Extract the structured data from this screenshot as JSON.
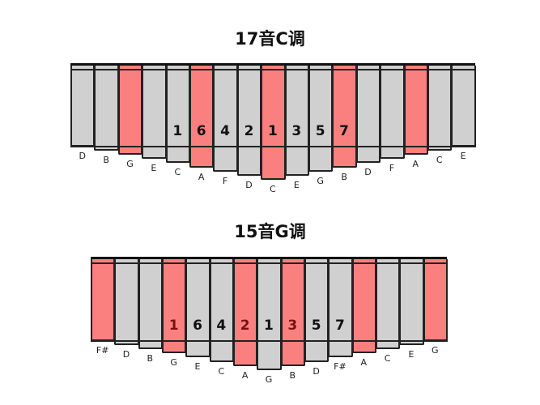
{
  "colors": {
    "red": "#fa8080",
    "gray": "#d0d0d0"
  },
  "diagrams": [
    {
      "title": "17音C调",
      "keys": [
        {
          "note": "D",
          "red": false,
          "length": 0
        },
        {
          "note": "B",
          "red": false,
          "length": 1
        },
        {
          "note": "G",
          "red": true,
          "length": 2
        },
        {
          "note": "E",
          "red": false,
          "length": 3
        },
        {
          "note": "C",
          "red": false,
          "length": 4,
          "number": "1"
        },
        {
          "note": "A",
          "red": true,
          "length": 5,
          "number": "6"
        },
        {
          "note": "F",
          "red": false,
          "length": 6,
          "number": "4"
        },
        {
          "note": "D",
          "red": false,
          "length": 7,
          "number": "2"
        },
        {
          "note": "C",
          "red": true,
          "length": 8,
          "number": "1"
        },
        {
          "note": "E",
          "red": false,
          "length": 7,
          "number": "3"
        },
        {
          "note": "G",
          "red": false,
          "length": 6,
          "number": "5"
        },
        {
          "note": "B",
          "red": true,
          "length": 5,
          "number": "7"
        },
        {
          "note": "D",
          "red": false,
          "length": 4
        },
        {
          "note": "F",
          "red": false,
          "length": 3
        },
        {
          "note": "A",
          "red": true,
          "length": 2
        },
        {
          "note": "C",
          "red": false,
          "length": 1
        },
        {
          "note": "E",
          "red": false,
          "length": 0
        }
      ]
    },
    {
      "title": "15音G调",
      "keys": [
        {
          "note": "F#",
          "red": true,
          "length": 0
        },
        {
          "note": "D",
          "red": false,
          "length": 1
        },
        {
          "note": "B",
          "red": false,
          "length": 2
        },
        {
          "note": "G",
          "red": true,
          "length": 3,
          "number": "1"
        },
        {
          "note": "E",
          "red": false,
          "length": 4,
          "number": "6"
        },
        {
          "note": "C",
          "red": false,
          "length": 5,
          "number": "4"
        },
        {
          "note": "A",
          "red": true,
          "length": 6,
          "number": "2"
        },
        {
          "note": "G",
          "red": false,
          "length": 7,
          "number": "1"
        },
        {
          "note": "B",
          "red": true,
          "length": 6,
          "number": "3"
        },
        {
          "note": "D",
          "red": false,
          "length": 5,
          "number": "5"
        },
        {
          "note": "F#",
          "red": false,
          "length": 4,
          "number": "7"
        },
        {
          "note": "A",
          "red": true,
          "length": 3
        },
        {
          "note": "C",
          "red": false,
          "length": 2
        },
        {
          "note": "E",
          "red": false,
          "length": 1
        },
        {
          "note": "G",
          "red": true,
          "length": 0
        }
      ]
    }
  ]
}
